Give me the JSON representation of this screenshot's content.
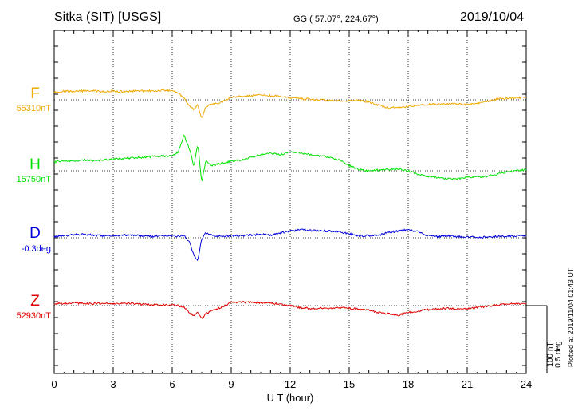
{
  "header": {
    "station": "Sitka (SIT)  [USGS]",
    "coords": "GG ( 57.07°, 224.67°)",
    "date": "2019/10/04"
  },
  "footer": {
    "plotted": "Plotted at 2019/11/04 01:43 UT"
  },
  "colors": {
    "F": "#f0a800",
    "H": "#00e000",
    "D": "#0000dd",
    "Z": "#e00000"
  },
  "chart_data": {
    "type": "line",
    "xlabel": "U T (hour)",
    "xlim": [
      0,
      24
    ],
    "xticks": [
      "0",
      "3",
      "6",
      "9",
      "12",
      "15",
      "18",
      "21",
      "24"
    ],
    "grid": true,
    "scale_bar": {
      "label_nt": "100 nT",
      "label_deg": "0.5 deg"
    },
    "x": [
      0,
      0.5,
      1,
      1.5,
      2,
      2.5,
      3,
      3.5,
      4,
      4.5,
      5,
      5.5,
      6,
      6.3,
      6.6,
      6.9,
      7.1,
      7.3,
      7.5,
      7.7,
      8,
      8.5,
      9,
      9.5,
      10,
      10.5,
      11,
      11.5,
      12,
      12.5,
      13,
      13.5,
      14,
      14.5,
      15,
      15.5,
      16,
      16.5,
      17,
      17.5,
      18,
      18.5,
      19,
      19.5,
      20,
      20.5,
      21,
      21.5,
      22,
      22.5,
      23,
      23.5,
      24
    ],
    "series": [
      {
        "name": "F",
        "baseline_label": "55310nT",
        "values": [
          11,
          13,
          12,
          13,
          13,
          12,
          13,
          12,
          13,
          13,
          13,
          14,
          13,
          10,
          2,
          -10,
          -14,
          -8,
          -28,
          -10,
          -6,
          -4,
          4,
          5,
          6,
          7,
          6,
          5,
          3,
          2,
          1,
          0,
          -1,
          -1,
          -1,
          -1,
          -3,
          -8,
          -12,
          -11,
          -10,
          -8,
          -7,
          -6,
          -6,
          -6,
          -7,
          -5,
          -2,
          1,
          2,
          3,
          3
        ]
      },
      {
        "name": "H",
        "baseline_label": "15750nT",
        "values": [
          13,
          15,
          14,
          16,
          15,
          16,
          17,
          18,
          19,
          20,
          21,
          22,
          22,
          28,
          52,
          30,
          6,
          40,
          -17,
          14,
          8,
          11,
          14,
          16,
          20,
          24,
          26,
          24,
          28,
          26,
          24,
          22,
          20,
          16,
          8,
          2,
          0,
          1,
          2,
          3,
          0,
          -5,
          -8,
          -10,
          -12,
          -12,
          -10,
          -9,
          -8,
          -5,
          -2,
          0,
          2
        ]
      },
      {
        "name": "D",
        "baseline_label": "-0.3deg",
        "values": [
          2,
          3,
          5,
          5,
          4,
          3,
          3,
          4,
          4,
          3,
          2,
          3,
          3,
          2,
          4,
          -8,
          -26,
          -34,
          -2,
          8,
          4,
          2,
          3,
          3,
          4,
          5,
          4,
          7,
          10,
          12,
          11,
          10,
          10,
          9,
          6,
          3,
          3,
          4,
          8,
          10,
          12,
          9,
          3,
          2,
          3,
          2,
          1,
          1,
          1,
          2,
          2,
          3,
          3
        ]
      },
      {
        "name": "Z",
        "baseline_label": "52930nT",
        "values": [
          3,
          3,
          4,
          3,
          3,
          3,
          3,
          3,
          3,
          2,
          1,
          1,
          1,
          0,
          -2,
          -12,
          -14,
          -10,
          -20,
          -12,
          -8,
          -2,
          5,
          5,
          5,
          4,
          4,
          2,
          0,
          -3,
          -4,
          -4,
          -4,
          -3,
          -4,
          -5,
          -7,
          -10,
          -12,
          -14,
          -10,
          -8,
          -6,
          -5,
          -4,
          -5,
          -5,
          -3,
          -1,
          1,
          2,
          3,
          3
        ]
      }
    ]
  }
}
